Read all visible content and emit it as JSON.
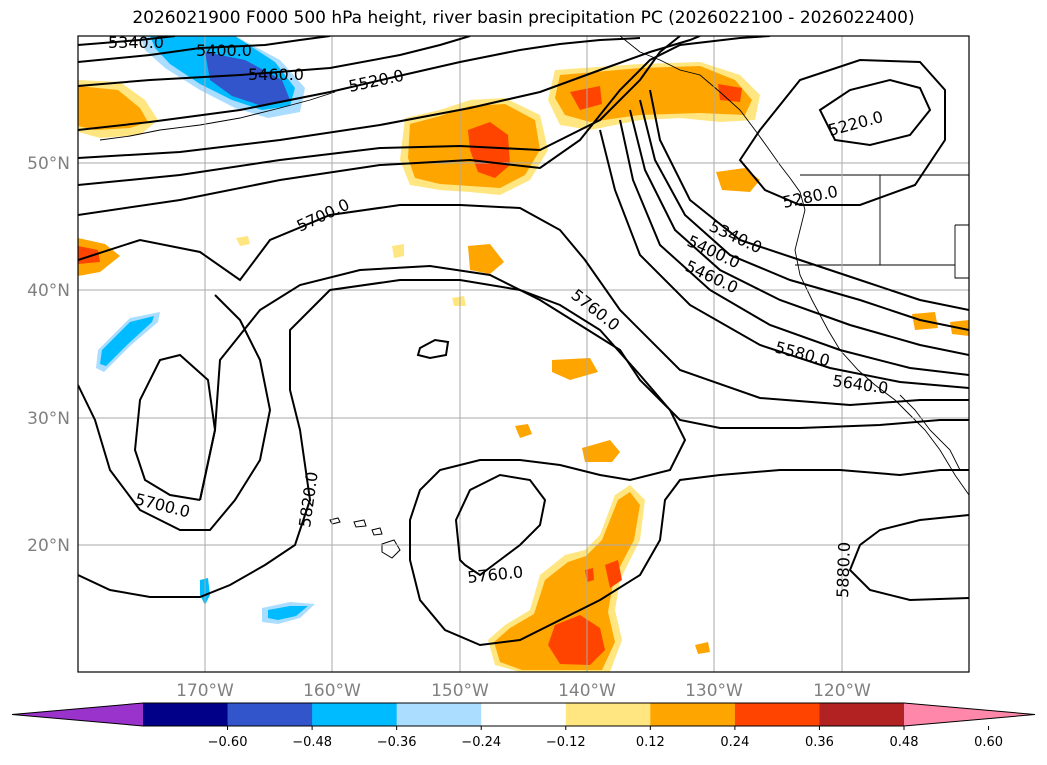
{
  "title": "2026021900 F000 500 hPa height, river basin precipitation PC (2026022100 - 2026022400)",
  "lat_labels": [
    "50°N",
    "40°N",
    "30°N",
    "20°N"
  ],
  "lon_labels": [
    "170°W",
    "160°W",
    "150°W",
    "140°W",
    "130°W",
    "120°W"
  ],
  "colorbar": {
    "ticks": [
      "−0.60",
      "−0.48",
      "−0.36",
      "−0.24",
      "−0.12",
      "0.12",
      "0.24",
      "0.36",
      "0.48",
      "0.60"
    ],
    "colors": [
      "#9933cc",
      "#000088",
      "#3355cc",
      "#00bbff",
      "#aaddff",
      "#ffffff",
      "#ffe680",
      "#ffa500",
      "#ff4400",
      "#b22222",
      "#ff88aa"
    ]
  },
  "contour_labels": [
    "5340.0",
    "5400.0",
    "5460.0",
    "5520.0",
    "5220.0",
    "5280.0",
    "5700.0",
    "5340.0",
    "5400.0",
    "5460.0",
    "5760.0",
    "5580.0",
    "5640.0",
    "5700.0",
    "5820.0",
    "5760.0",
    "5880.0"
  ],
  "colors": {
    "positive": "#ffa500",
    "strong_positive": "#ff4400",
    "weak_positive": "#ffe680",
    "negative": "#00bbff",
    "strong_negative": "#3355cc",
    "weak_negative": "#aaddff"
  }
}
